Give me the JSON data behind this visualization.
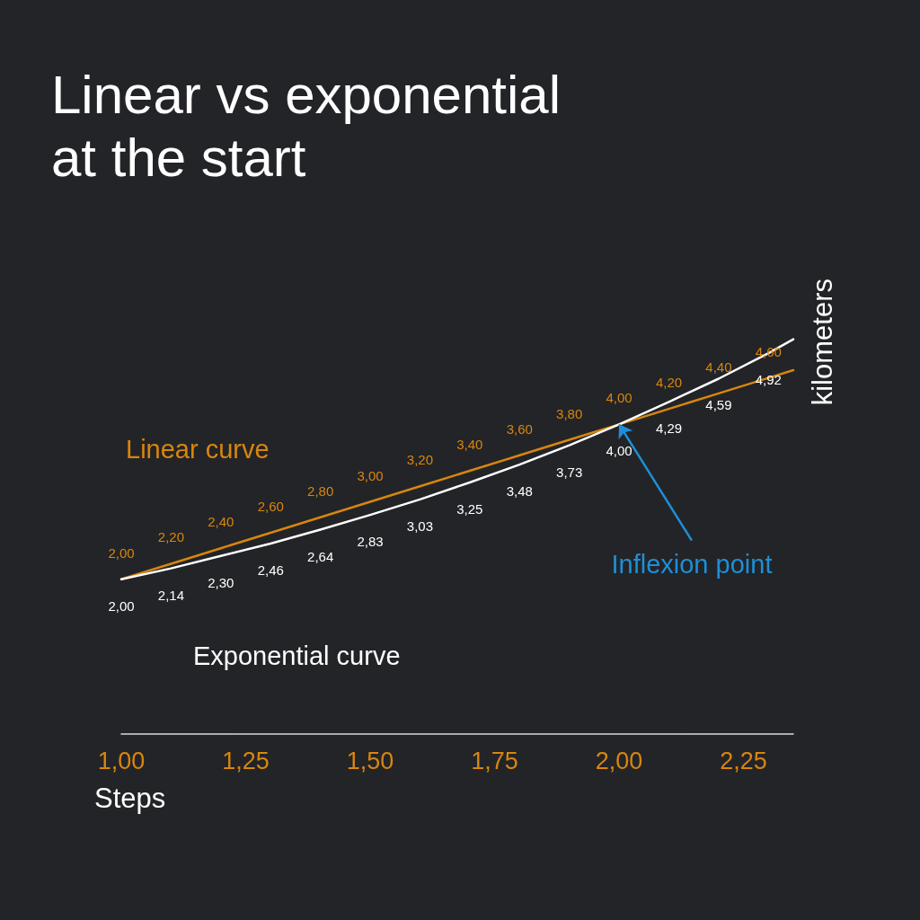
{
  "chart_data": {
    "type": "line",
    "title": "Linear vs exponential at the start",
    "xlabel": "Steps",
    "ylabel": "kilometers",
    "x": [
      1,
      1.1,
      1.2,
      1.3,
      1.4,
      1.5,
      1.6,
      1.7,
      1.8,
      1.9,
      2,
      2.1,
      2.2,
      2.3,
      2.35
    ],
    "series": [
      {
        "name": "Linear curve",
        "color": "#d8860f",
        "values": [
          2,
          2.2,
          2.4,
          2.6,
          2.8,
          3,
          3.2,
          3.4,
          3.6,
          3.8,
          4,
          4.2,
          4.4,
          4.6,
          4.7
        ],
        "value_labels": [
          "2,00",
          "2,20",
          "2,40",
          "2,60",
          "2,80",
          "3,00",
          "3,20",
          "3,40",
          "3,60",
          "3,80",
          "4,00",
          "4,20",
          "4,40",
          "4,60",
          null
        ]
      },
      {
        "name": "Exponential curve",
        "color": "#ffffff",
        "values": [
          2,
          2.14,
          2.3,
          2.46,
          2.64,
          2.83,
          3.03,
          3.25,
          3.48,
          3.73,
          4,
          4.29,
          4.59,
          4.92,
          5.1
        ],
        "value_labels": [
          "2,00",
          "2,14",
          "2,30",
          "2,46",
          "2,64",
          "2,83",
          "3,03",
          "3,25",
          "3,48",
          "3,73",
          "4,00",
          "4,29",
          "4,59",
          "4,92",
          null
        ]
      }
    ],
    "xlim": [
      1,
      2.35
    ],
    "xticks": [
      {
        "value": 1,
        "label": "1,00"
      },
      {
        "value": 1.25,
        "label": "1,25"
      },
      {
        "value": 1.5,
        "label": "1,50"
      },
      {
        "value": 1.75,
        "label": "1,75"
      },
      {
        "value": 2,
        "label": "2,00"
      },
      {
        "value": 2.25,
        "label": "2,25"
      }
    ],
    "tick_labels": "x",
    "grid": false,
    "legend": false,
    "marker": "none",
    "line_style": "solid",
    "annotations": [
      {
        "text": "Inflexion point",
        "x": 2,
        "y": 4
      }
    ]
  }
}
